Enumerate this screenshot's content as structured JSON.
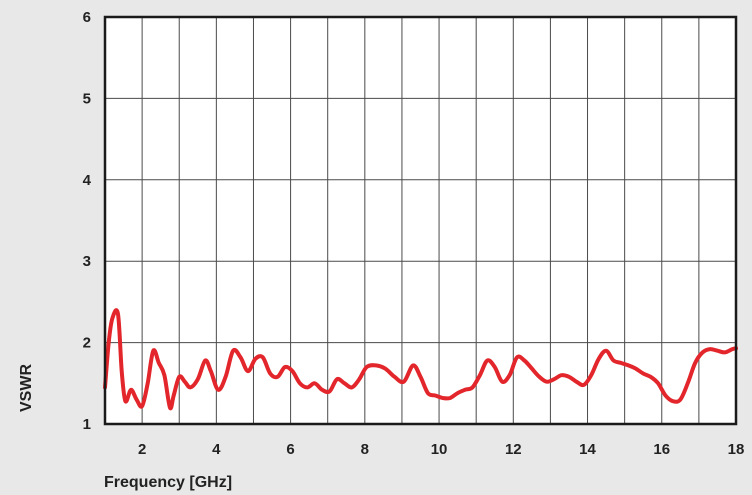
{
  "chart_data": {
    "type": "line",
    "title": "",
    "xlabel": "Frequency [GHz]",
    "ylabel": "VSWR",
    "xlim": [
      1,
      18
    ],
    "ylim": [
      1,
      6
    ],
    "grid": true,
    "x_ticks": [
      2,
      4,
      6,
      8,
      10,
      12,
      14,
      16,
      18
    ],
    "x_tick_labels": [
      "2",
      "4",
      "6",
      "8",
      "10",
      "12",
      "14",
      "16",
      "18"
    ],
    "y_ticks": [
      1,
      2,
      3,
      4,
      5,
      6
    ],
    "y_tick_labels": [
      "1",
      "2",
      "3",
      "4",
      "5",
      "6"
    ],
    "series": [
      {
        "color": "#e3262b",
        "x": [
          1.0,
          1.1,
          1.2,
          1.35,
          1.45,
          1.55,
          1.7,
          1.85,
          2.0,
          2.15,
          2.3,
          2.45,
          2.6,
          2.75,
          2.85,
          3.0,
          3.15,
          3.3,
          3.5,
          3.7,
          3.85,
          4.05,
          4.25,
          4.45,
          4.65,
          4.85,
          5.05,
          5.25,
          5.45,
          5.65,
          5.85,
          6.05,
          6.25,
          6.45,
          6.65,
          6.85,
          7.05,
          7.25,
          7.45,
          7.65,
          7.85,
          8.05,
          8.3,
          8.55,
          8.8,
          9.05,
          9.3,
          9.5,
          9.7,
          9.9,
          10.1,
          10.3,
          10.5,
          10.7,
          10.9,
          11.1,
          11.3,
          11.5,
          11.7,
          11.9,
          12.1,
          12.3,
          12.5,
          12.7,
          12.9,
          13.1,
          13.3,
          13.5,
          13.7,
          13.9,
          14.1,
          14.3,
          14.5,
          14.7,
          14.9,
          15.1,
          15.3,
          15.5,
          15.7,
          15.9,
          16.1,
          16.3,
          16.5,
          16.7,
          16.9,
          17.1,
          17.3,
          17.5,
          17.7,
          17.9,
          18.0
        ],
        "y": [
          1.45,
          2.0,
          2.3,
          2.35,
          1.65,
          1.28,
          1.42,
          1.3,
          1.22,
          1.5,
          1.9,
          1.75,
          1.6,
          1.2,
          1.35,
          1.58,
          1.52,
          1.45,
          1.55,
          1.78,
          1.65,
          1.42,
          1.58,
          1.9,
          1.82,
          1.65,
          1.8,
          1.82,
          1.62,
          1.58,
          1.7,
          1.65,
          1.5,
          1.45,
          1.5,
          1.42,
          1.4,
          1.55,
          1.5,
          1.45,
          1.55,
          1.7,
          1.72,
          1.68,
          1.58,
          1.52,
          1.72,
          1.58,
          1.38,
          1.35,
          1.32,
          1.32,
          1.38,
          1.42,
          1.45,
          1.6,
          1.78,
          1.7,
          1.52,
          1.6,
          1.82,
          1.78,
          1.68,
          1.58,
          1.52,
          1.55,
          1.6,
          1.58,
          1.52,
          1.48,
          1.6,
          1.8,
          1.9,
          1.78,
          1.75,
          1.72,
          1.68,
          1.62,
          1.58,
          1.5,
          1.35,
          1.28,
          1.3,
          1.5,
          1.75,
          1.88,
          1.92,
          1.9,
          1.88,
          1.92,
          1.93
        ]
      }
    ]
  }
}
